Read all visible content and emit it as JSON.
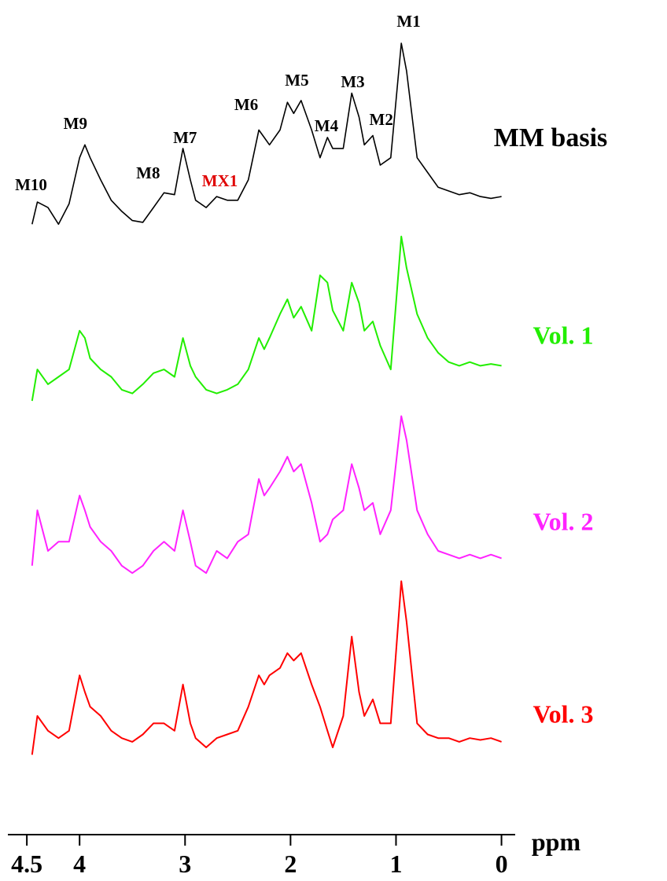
{
  "chart_data": {
    "type": "line",
    "x_label": "ppm",
    "xlim": [
      4.68,
      -0.13
    ],
    "xticks": [
      4.5,
      4,
      3,
      2,
      1,
      0
    ],
    "ylim": [
      0,
      100
    ],
    "x": [
      4.45,
      4.4,
      4.3,
      4.2,
      4.1,
      4.0,
      3.95,
      3.9,
      3.8,
      3.7,
      3.6,
      3.5,
      3.4,
      3.3,
      3.2,
      3.1,
      3.02,
      2.95,
      2.9,
      2.8,
      2.7,
      2.6,
      2.5,
      2.4,
      2.3,
      2.25,
      2.2,
      2.1,
      2.03,
      1.97,
      1.9,
      1.8,
      1.72,
      1.65,
      1.6,
      1.5,
      1.42,
      1.35,
      1.3,
      1.22,
      1.15,
      1.05,
      0.95,
      0.9,
      0.8,
      0.7,
      0.6,
      0.5,
      0.4,
      0.3,
      0.2,
      0.1,
      0.0
    ],
    "series": [
      {
        "name": "MM basis",
        "color": "#000000",
        "values": [
          2,
          14,
          11,
          2,
          13,
          38,
          45,
          38,
          26,
          15,
          9,
          4,
          3,
          11,
          19,
          18,
          43,
          26,
          15,
          11,
          17,
          15,
          15,
          26,
          53,
          49,
          45,
          53,
          68,
          62,
          69,
          53,
          38,
          49,
          43,
          43,
          73,
          60,
          45,
          50,
          34,
          38,
          100,
          85,
          38,
          30,
          22,
          20,
          18,
          19,
          17,
          16,
          17
        ]
      },
      {
        "name": "Vol. 1",
        "color": "#22ee00",
        "values": [
          17,
          34,
          26,
          30,
          34,
          55,
          51,
          40,
          34,
          30,
          23,
          21,
          26,
          32,
          34,
          30,
          51,
          36,
          30,
          23,
          21,
          23,
          26,
          34,
          51,
          45,
          51,
          64,
          72,
          62,
          68,
          55,
          85,
          81,
          66,
          55,
          81,
          70,
          55,
          60,
          47,
          34,
          106,
          89,
          64,
          51,
          43,
          38,
          36,
          38,
          36,
          37,
          36
        ]
      },
      {
        "name": "Vol. 2",
        "color": "#ff22ff",
        "values": [
          32,
          62,
          40,
          45,
          45,
          70,
          62,
          53,
          45,
          40,
          32,
          28,
          32,
          40,
          45,
          40,
          62,
          45,
          32,
          28,
          40,
          36,
          45,
          49,
          79,
          70,
          74,
          83,
          91,
          83,
          87,
          66,
          45,
          49,
          57,
          62,
          87,
          74,
          62,
          66,
          49,
          62,
          113,
          100,
          62,
          49,
          40,
          38,
          36,
          38,
          36,
          38,
          36
        ]
      },
      {
        "name": "Vol. 3",
        "color": "#ff0000",
        "values": [
          19,
          40,
          32,
          28,
          32,
          62,
          53,
          45,
          40,
          32,
          28,
          26,
          30,
          36,
          36,
          32,
          57,
          36,
          28,
          23,
          28,
          30,
          32,
          45,
          62,
          57,
          62,
          66,
          74,
          70,
          74,
          57,
          45,
          32,
          23,
          40,
          83,
          53,
          40,
          49,
          36,
          36,
          113,
          91,
          36,
          30,
          28,
          28,
          26,
          28,
          27,
          28,
          26
        ]
      }
    ],
    "annotations": [
      {
        "text": "M10",
        "x": 4.46,
        "color": "#000000"
      },
      {
        "text": "M9",
        "x": 4.04,
        "color": "#000000"
      },
      {
        "text": "M8",
        "x": 3.35,
        "color": "#000000"
      },
      {
        "text": "M7",
        "x": 3.0,
        "color": "#000000"
      },
      {
        "text": "MX1",
        "x": 2.67,
        "color": "#e00000"
      },
      {
        "text": "M6",
        "x": 2.42,
        "color": "#000000"
      },
      {
        "text": "M5",
        "x": 1.94,
        "color": "#000000"
      },
      {
        "text": "M4",
        "x": 1.66,
        "color": "#000000"
      },
      {
        "text": "M3",
        "x": 1.41,
        "color": "#000000"
      },
      {
        "text": "M2",
        "x": 1.14,
        "color": "#000000"
      },
      {
        "text": "M1",
        "x": 0.88,
        "color": "#000000"
      }
    ]
  }
}
